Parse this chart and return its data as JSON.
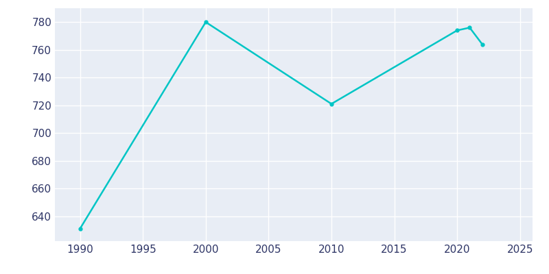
{
  "years": [
    1990,
    2000,
    2010,
    2020,
    2021,
    2022
  ],
  "population": [
    631,
    780,
    721,
    774,
    776,
    764
  ],
  "line_color": "#00C5C5",
  "background_color": "#E8EDF5",
  "fig_background_color": "#FFFFFF",
  "grid_color": "#FFFFFF",
  "tick_color": "#2E3566",
  "xlim": [
    1988,
    2026
  ],
  "ylim": [
    622,
    790
  ],
  "xticks": [
    1990,
    1995,
    2000,
    2005,
    2010,
    2015,
    2020,
    2025
  ],
  "yticks": [
    640,
    660,
    680,
    700,
    720,
    740,
    760,
    780
  ],
  "line_width": 1.8,
  "marker": "o",
  "marker_size": 3.5,
  "tick_fontsize": 11
}
